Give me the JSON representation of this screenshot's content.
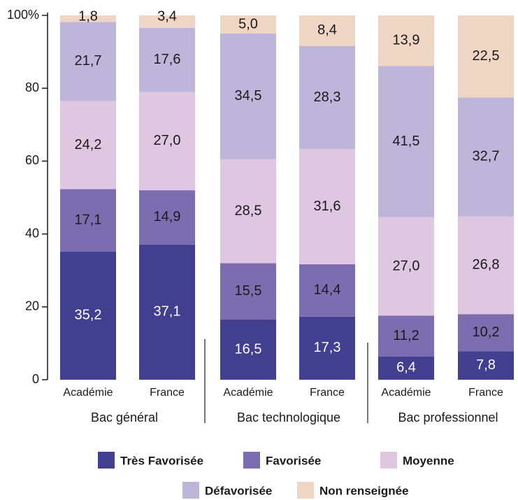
{
  "chart_data": {
    "type": "bar",
    "stacked": true,
    "groups": [
      "Bac général",
      "Bac technologique",
      "Bac professionnel"
    ],
    "subcategories": [
      "Académie",
      "France"
    ],
    "categories": [
      "Académie",
      "France",
      "Académie",
      "France",
      "Académie",
      "France"
    ],
    "series": [
      {
        "name": "Très Favorisée",
        "color": "#433f90",
        "values": [
          35.2,
          37.1,
          16.5,
          17.3,
          6.4,
          7.8
        ],
        "labels": [
          "35,2",
          "37,1",
          "16,5",
          "17,3",
          "6,4",
          "7,8"
        ]
      },
      {
        "name": "Favorisée",
        "color": "#7c6db1",
        "values": [
          17.1,
          14.9,
          15.5,
          14.4,
          11.2,
          10.2
        ],
        "labels": [
          "17,1",
          "14,9",
          "15,5",
          "14,4",
          "11,2",
          "10,2"
        ]
      },
      {
        "name": "Moyenne",
        "color": "#dfc6e1",
        "values": [
          24.2,
          27.0,
          28.5,
          31.6,
          27.0,
          26.8
        ],
        "labels": [
          "24,2",
          "27,0",
          "28,5",
          "31,6",
          "27,0",
          "26,8"
        ]
      },
      {
        "name": "Défavorisée",
        "color": "#bdb6da",
        "values": [
          21.7,
          17.6,
          34.5,
          28.3,
          41.5,
          32.7
        ],
        "labels": [
          "21,7",
          "17,6",
          "34,5",
          "28,3",
          "41,5",
          "32,7"
        ]
      },
      {
        "name": "Non renseignée",
        "color": "#efd5c4",
        "values": [
          1.8,
          3.4,
          5.0,
          8.4,
          13.9,
          22.5
        ],
        "labels": [
          "1,8",
          "3,4",
          "5,0",
          "8,4",
          "13,9",
          "22,5"
        ]
      }
    ],
    "yticks": [
      "0",
      "20",
      "40",
      "60",
      "80",
      "100%"
    ],
    "ytick_values": [
      0,
      20,
      40,
      60,
      80,
      100
    ],
    "ylim": [
      0,
      100
    ],
    "grid": false,
    "legend_position": "bottom",
    "label_text_colors": [
      "#ffffff",
      "#1a1a1a",
      "#1a1a1a",
      "#1a1a1a",
      "#1a1a1a"
    ],
    "axis_color": "#1a1a1a"
  }
}
